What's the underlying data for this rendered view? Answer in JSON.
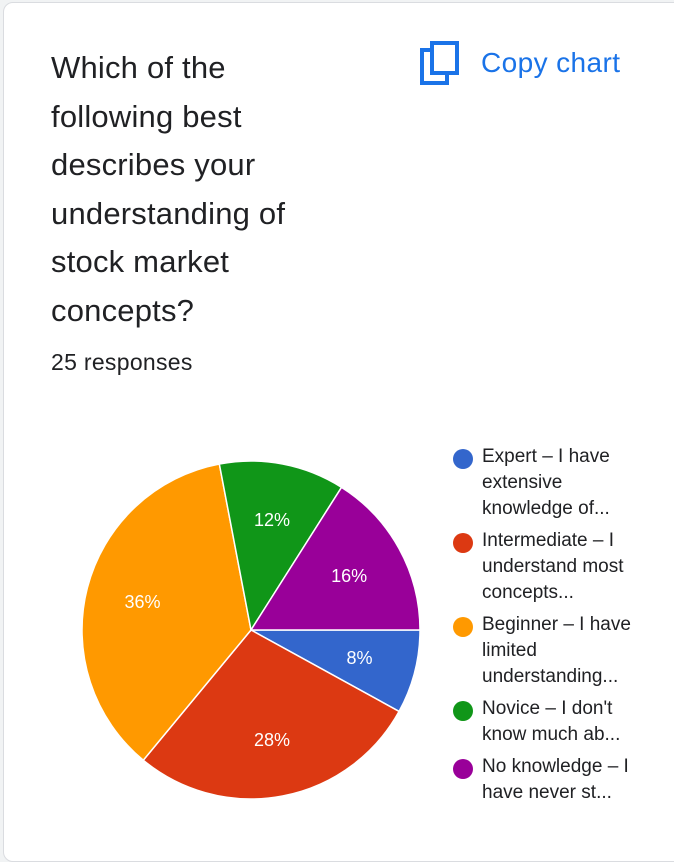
{
  "question": {
    "title": "Which of the following best describes your understanding of stock market concepts?",
    "responses_text": "25 responses"
  },
  "toolbar": {
    "copy_label": "Copy chart",
    "copy_icon": "copy-icon"
  },
  "chart_data": {
    "type": "pie",
    "categories": [
      "Expert – I have extensive knowledge of...",
      "Intermediate – I understand most concepts...",
      "Beginner – I have limited understanding...",
      "Novice – I don't know much ab...",
      "No knowledge – I have never st..."
    ],
    "values": [
      8,
      28,
      36,
      12,
      16
    ],
    "labels": [
      "8%",
      "28%",
      "36%",
      "12%",
      "16%"
    ],
    "colors": [
      "#3366cc",
      "#dc3912",
      "#ff9900",
      "#109618",
      "#990099"
    ],
    "title": "Which of the following best describes your understanding of stock market concepts?",
    "legend": "right"
  }
}
